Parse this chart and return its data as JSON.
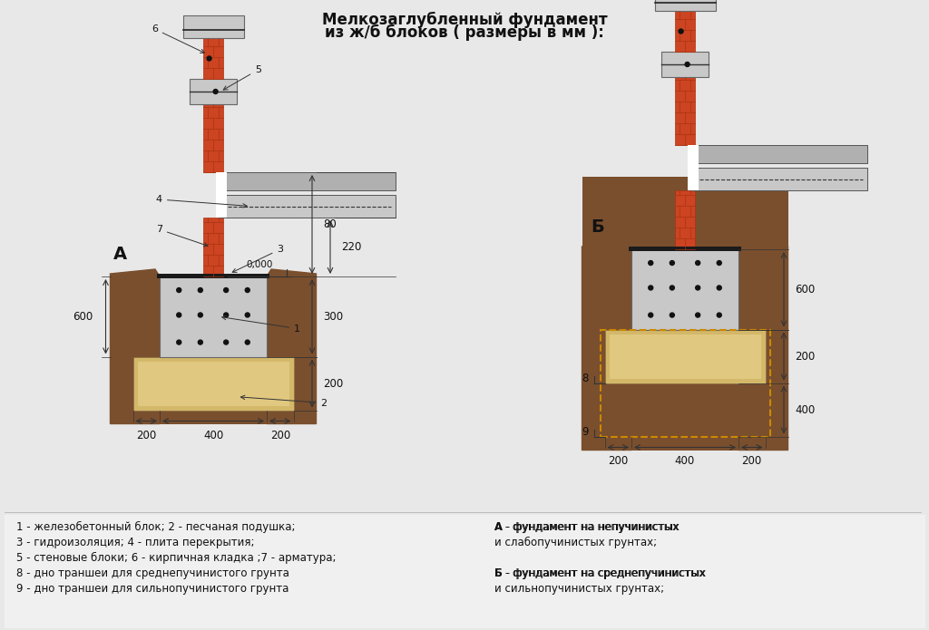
{
  "title_line1": "Мелкозаглубленный фундамент",
  "title_line2": "из ж/б блоков ( размеры в мм ):",
  "bg_color": "#e8e8e8",
  "colors": {
    "brick": "#cc4422",
    "brick_mortar": "#aa3311",
    "concrete": "#b0b0b0",
    "concrete_dark": "#888888",
    "concrete_light": "#c8c8c8",
    "sand": "#d4b86a",
    "sand_light": "#e0c880",
    "soil": "#7a4f2e",
    "soil_mid": "#6b3e20",
    "waterproof": "#1a1a1a",
    "white": "#ffffff",
    "black": "#111111",
    "dashed_orange": "#cc8800",
    "dim_line": "#333333"
  },
  "legend_left": [
    "1 - железобетонный блок; 2 - песчаная подушка;",
    "3 - гидроизоляция; 4 - плита перекрытия;",
    "5 - стеновые блоки; 6 - кирпичная кладка ;7 - арматура;",
    "8 - дно траншеи для среднепучинистого грунта",
    "9 - дно траншеи для сильнопучинистого грунта"
  ],
  "legend_right_a": [
    "А - фундамент на непучинистых",
    "и слабопучинистых грунтах;"
  ],
  "legend_right_b": [
    "Б - фундамент на среднепучинистых",
    "и сильнопучинистых грунтах;"
  ]
}
